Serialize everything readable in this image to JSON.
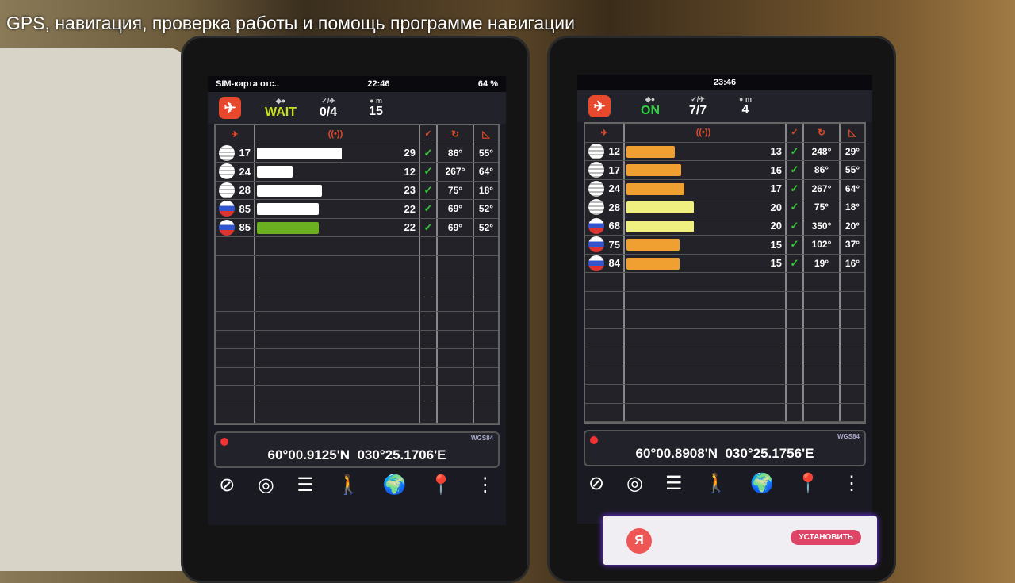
{
  "title": "GPS, навигация, проверка работы и помощь программе навигации",
  "phones": [
    {
      "status_left": "SIM-карта отс..",
      "time": "22:46",
      "status_right": "64 %",
      "fix_label": "WAIT",
      "fix_color": "#c8e020",
      "used": "0/4",
      "accuracy": "15",
      "accuracy_unit": "m",
      "sats": [
        {
          "flag": "us",
          "id": "17",
          "snr": "29",
          "level": 0.52,
          "color": "#ffffff",
          "az": "86°",
          "el": "55°"
        },
        {
          "flag": "us",
          "id": "24",
          "snr": "12",
          "level": 0.22,
          "color": "#ffffff",
          "az": "267°",
          "el": "64°"
        },
        {
          "flag": "us",
          "id": "28",
          "snr": "23",
          "level": 0.4,
          "color": "#ffffff",
          "az": "75°",
          "el": "18°"
        },
        {
          "flag": "ru",
          "id": "85",
          "snr": "22",
          "level": 0.38,
          "color": "#ffffff",
          "az": "69°",
          "el": "52°"
        },
        {
          "flag": "ru",
          "id": "85",
          "snr": "22",
          "level": 0.38,
          "color": "#6ab020",
          "az": "69°",
          "el": "52°"
        }
      ],
      "lat": "60°00.9125'N",
      "lon": "030°25.1706'E",
      "datum": "WGS84"
    },
    {
      "status_left": "",
      "time": "23:46",
      "status_right": "",
      "fix_label": "ON",
      "fix_color": "#30d040",
      "used": "7/7",
      "accuracy": "4",
      "accuracy_unit": "m",
      "sats": [
        {
          "flag": "us",
          "id": "12",
          "snr": "13",
          "level": 0.3,
          "color": "#f0a030",
          "az": "248°",
          "el": "29°"
        },
        {
          "flag": "us",
          "id": "17",
          "snr": "16",
          "level": 0.34,
          "color": "#f0a030",
          "az": "86°",
          "el": "55°"
        },
        {
          "flag": "us",
          "id": "24",
          "snr": "17",
          "level": 0.36,
          "color": "#f0a030",
          "az": "267°",
          "el": "64°"
        },
        {
          "flag": "us",
          "id": "28",
          "snr": "20",
          "level": 0.42,
          "color": "#f0f080",
          "az": "75°",
          "el": "18°"
        },
        {
          "flag": "ru",
          "id": "68",
          "snr": "20",
          "level": 0.42,
          "color": "#f0f080",
          "az": "350°",
          "el": "20°"
        },
        {
          "flag": "ru",
          "id": "75",
          "snr": "15",
          "level": 0.33,
          "color": "#f0a030",
          "az": "102°",
          "el": "37°"
        },
        {
          "flag": "ru",
          "id": "84",
          "snr": "15",
          "level": 0.33,
          "color": "#f0a030",
          "az": "19°",
          "el": "16°"
        }
      ],
      "lat": "60°00.8908'N",
      "lon": "030°25.1756'E",
      "datum": "WGS84"
    }
  ],
  "tools": [
    "compass-icon",
    "satellite-radar-icon",
    "signal-list-icon",
    "walk-icon",
    "globe-icon",
    "location-pin-icon",
    "more-icon"
  ],
  "ad": {
    "logo": "Я",
    "button": "УСТАНОВИТЬ"
  }
}
